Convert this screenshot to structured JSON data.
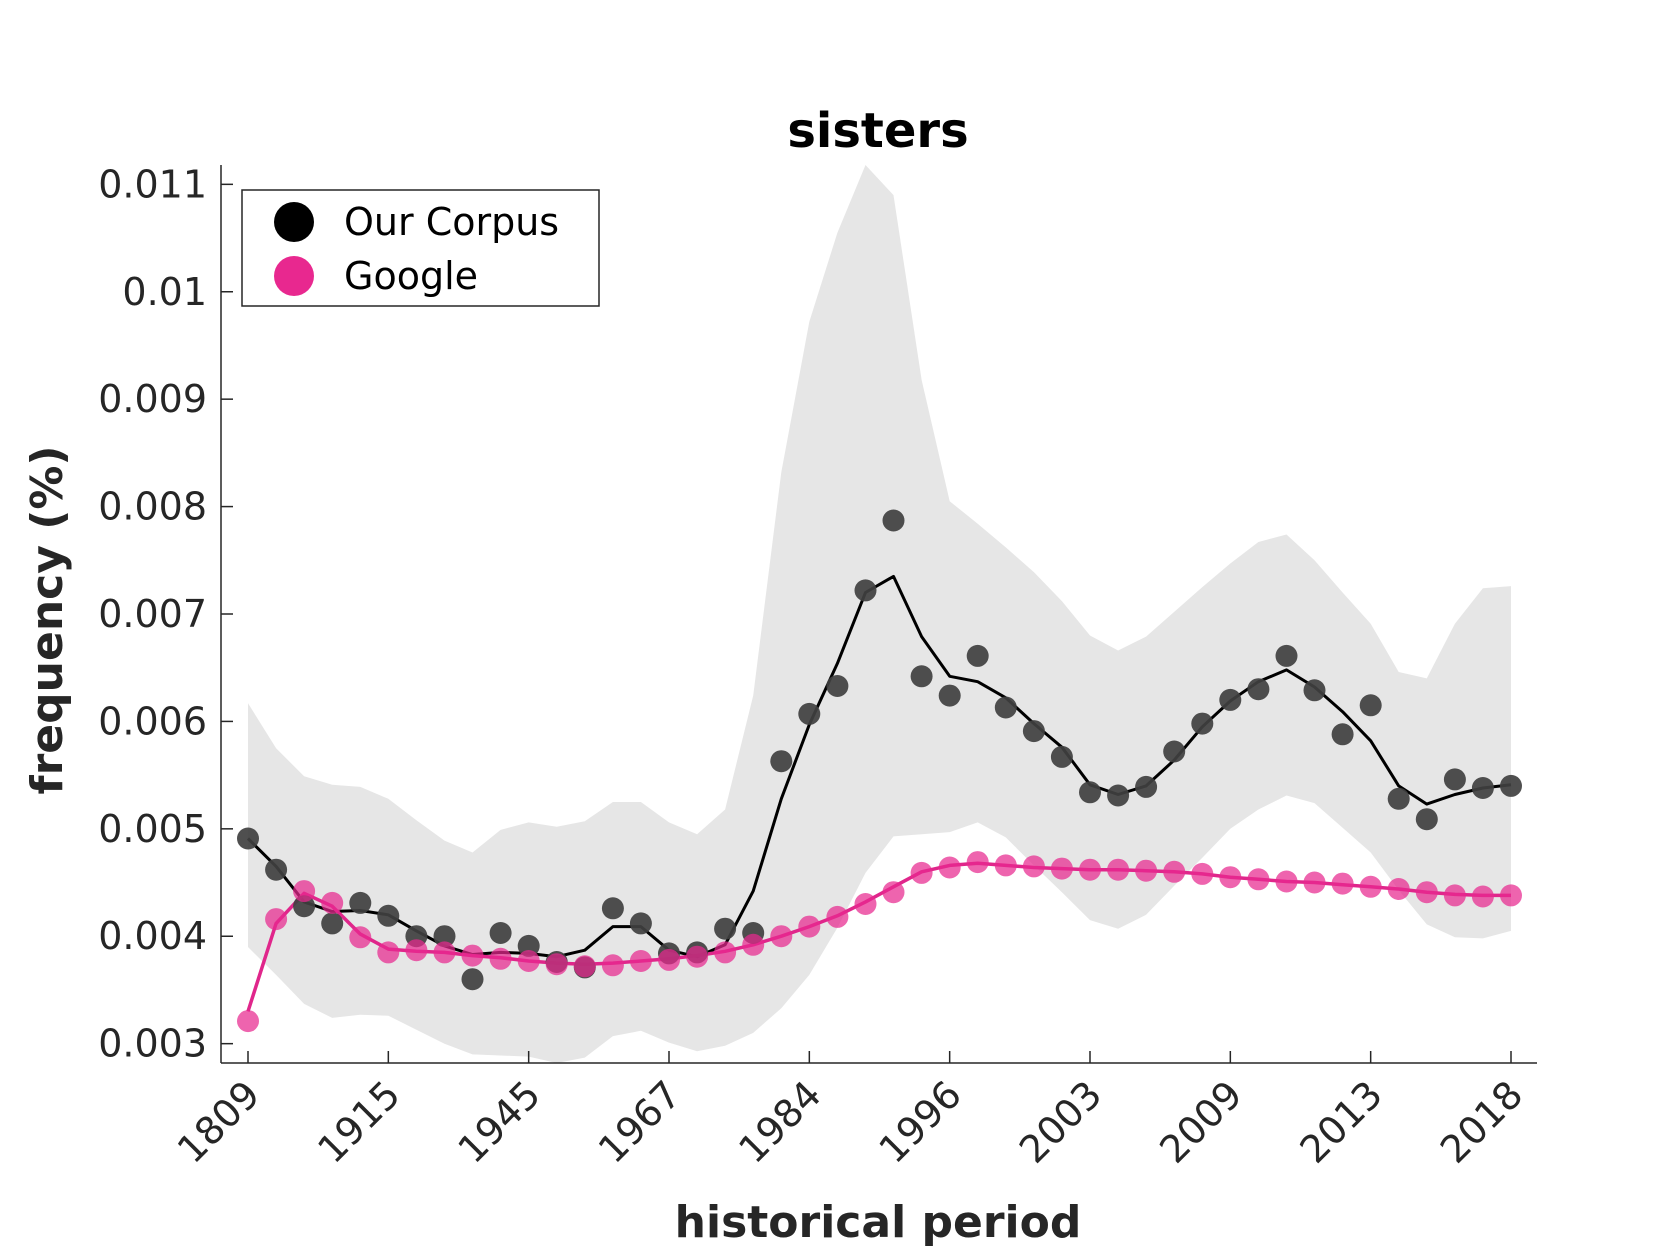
{
  "chart_data": {
    "type": "scatter",
    "title": "sisters",
    "xlabel": "historical period",
    "ylabel": "frequency (%)",
    "ylim": [
      0.00282,
      0.01118
    ],
    "yticks": [
      "0.003",
      "0.004",
      "0.005",
      "0.006",
      "0.007",
      "0.008",
      "0.009",
      "0.01",
      "0.011"
    ],
    "x_positions": 46,
    "xticks": [
      {
        "index": 1,
        "label": "1809"
      },
      {
        "index": 6,
        "label": "1915"
      },
      {
        "index": 11,
        "label": "1945"
      },
      {
        "index": 16,
        "label": "1967"
      },
      {
        "index": 21,
        "label": "1984"
      },
      {
        "index": 26,
        "label": "1996"
      },
      {
        "index": 31,
        "label": "2003"
      },
      {
        "index": 36,
        "label": "2009"
      },
      {
        "index": 41,
        "label": "2013"
      },
      {
        "index": 46,
        "label": "2018"
      }
    ],
    "legend": {
      "position": "top-left"
    },
    "grid": false,
    "series": [
      {
        "name": "Our Corpus",
        "color": "#404040",
        "line_color": "#000000",
        "points": [
          0.00491,
          0.00462,
          0.00428,
          0.00412,
          0.00431,
          0.00419,
          0.004,
          0.004,
          0.0036,
          0.00403,
          0.00391,
          0.00376,
          0.00371,
          0.00426,
          0.00412,
          0.00384,
          0.00385,
          0.00407,
          0.00403,
          0.00563,
          0.00607,
          0.00633,
          0.00722,
          0.00787,
          0.00642,
          0.00624,
          0.00661,
          0.00613,
          0.00591,
          0.00567,
          0.00534,
          0.00531,
          0.00539,
          0.00572,
          0.00598,
          0.0062,
          0.0063,
          0.00661,
          0.00629,
          0.00588,
          0.00615,
          0.00528,
          0.00509,
          0.00546,
          0.00538,
          0.0054
        ],
        "smooth": [
          0.00491,
          0.00465,
          0.00432,
          0.00423,
          0.00424,
          0.0042,
          0.00405,
          0.00391,
          0.00383,
          0.00385,
          0.00384,
          0.00381,
          0.00387,
          0.00409,
          0.00409,
          0.00387,
          0.00381,
          0.00392,
          0.00442,
          0.00528,
          0.00597,
          0.00654,
          0.0072,
          0.00735,
          0.00679,
          0.00642,
          0.00637,
          0.00622,
          0.00598,
          0.00576,
          0.00541,
          0.00532,
          0.0054,
          0.00564,
          0.00595,
          0.00619,
          0.00637,
          0.00648,
          0.00632,
          0.00609,
          0.00582,
          0.0054,
          0.00523,
          0.00532,
          0.00538,
          0.00541
        ],
        "band_upper": [
          0.00617,
          0.00575,
          0.00549,
          0.00541,
          0.00539,
          0.00528,
          0.00508,
          0.00489,
          0.00478,
          0.00499,
          0.00506,
          0.00502,
          0.00507,
          0.00525,
          0.00525,
          0.00506,
          0.00495,
          0.00518,
          0.00624,
          0.00832,
          0.00972,
          0.01055,
          0.01118,
          0.0109,
          0.00918,
          0.00805,
          0.00784,
          0.00762,
          0.00739,
          0.00712,
          0.0068,
          0.00666,
          0.00679,
          0.00702,
          0.00725,
          0.00747,
          0.00767,
          0.00774,
          0.0075,
          0.0072,
          0.00691,
          0.00646,
          0.0064,
          0.00691,
          0.00724,
          0.00726
        ],
        "band_lower": [
          0.0039,
          0.00364,
          0.00337,
          0.00324,
          0.00327,
          0.00326,
          0.00313,
          0.003,
          0.0029,
          0.00289,
          0.00288,
          0.00282,
          0.00287,
          0.00307,
          0.00312,
          0.00301,
          0.00293,
          0.00298,
          0.0031,
          0.00333,
          0.00364,
          0.00408,
          0.00459,
          0.00493,
          0.00495,
          0.00497,
          0.00506,
          0.00492,
          0.00466,
          0.00441,
          0.00415,
          0.00407,
          0.0042,
          0.00447,
          0.00473,
          0.005,
          0.00518,
          0.00531,
          0.00524,
          0.00501,
          0.00478,
          0.00443,
          0.00411,
          0.00399,
          0.00398,
          0.00405
        ]
      },
      {
        "name": "Google",
        "color": "#e8288f",
        "line_color": "#e0268b",
        "points": [
          0.00321,
          0.00416,
          0.00442,
          0.00431,
          0.00399,
          0.00385,
          0.00387,
          0.00385,
          0.00382,
          0.00379,
          0.00377,
          0.00374,
          0.00372,
          0.00373,
          0.00377,
          0.00378,
          0.00381,
          0.00385,
          0.00392,
          0.004,
          0.00409,
          0.00418,
          0.0043,
          0.00441,
          0.00459,
          0.00464,
          0.00469,
          0.00466,
          0.00465,
          0.00463,
          0.00462,
          0.00462,
          0.00461,
          0.0046,
          0.00458,
          0.00455,
          0.00453,
          0.00451,
          0.0045,
          0.00449,
          0.00446,
          0.00444,
          0.00441,
          0.00438,
          0.00437,
          0.00438
        ],
        "smooth": [
          0.0033,
          0.00412,
          0.0044,
          0.00428,
          0.00402,
          0.00388,
          0.00386,
          0.00385,
          0.00382,
          0.0038,
          0.00377,
          0.00375,
          0.00374,
          0.00375,
          0.00377,
          0.00379,
          0.00382,
          0.00386,
          0.00392,
          0.004,
          0.00409,
          0.00419,
          0.00432,
          0.00446,
          0.0046,
          0.00466,
          0.00468,
          0.00466,
          0.00464,
          0.00463,
          0.00462,
          0.00462,
          0.00461,
          0.0046,
          0.00458,
          0.00455,
          0.00453,
          0.00451,
          0.0045,
          0.00448,
          0.00446,
          0.00444,
          0.00441,
          0.00439,
          0.00438,
          0.00438
        ]
      }
    ]
  }
}
